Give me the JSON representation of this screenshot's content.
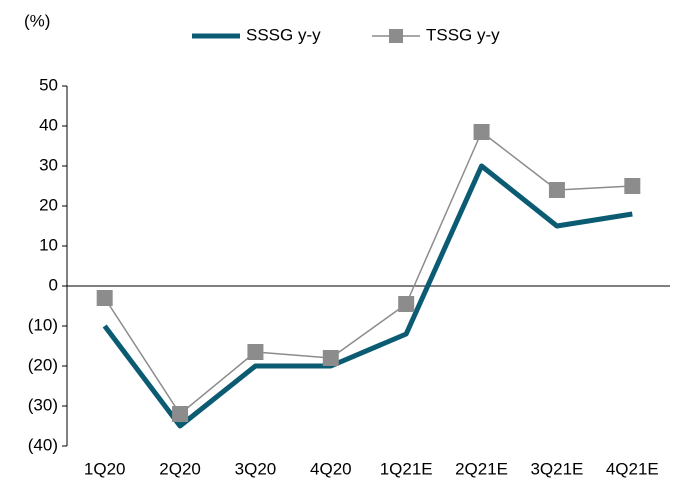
{
  "chart_data": {
    "type": "line",
    "y_label": "(%)",
    "categories": [
      "1Q20",
      "2Q20",
      "3Q20",
      "4Q20",
      "1Q21E",
      "2Q21E",
      "3Q21E",
      "4Q21E"
    ],
    "series": [
      {
        "name": "SSSG y-y",
        "color": "#0b5c73",
        "values": [
          -10,
          -35,
          -20,
          -20,
          -12,
          30,
          15,
          18
        ]
      },
      {
        "name": "TSSG y-y",
        "color": "#8c8c8c",
        "values": [
          -3,
          -32,
          -16.5,
          -18,
          -4.5,
          38.5,
          24,
          25
        ]
      }
    ],
    "ylim": [
      -40,
      50
    ],
    "yticks": [
      {
        "value": -40,
        "label": "(40)"
      },
      {
        "value": -30,
        "label": "(30)"
      },
      {
        "value": -20,
        "label": "(20)"
      },
      {
        "value": -10,
        "label": "(10)"
      },
      0,
      10,
      20,
      30,
      40,
      50
    ],
    "legend": "top"
  }
}
